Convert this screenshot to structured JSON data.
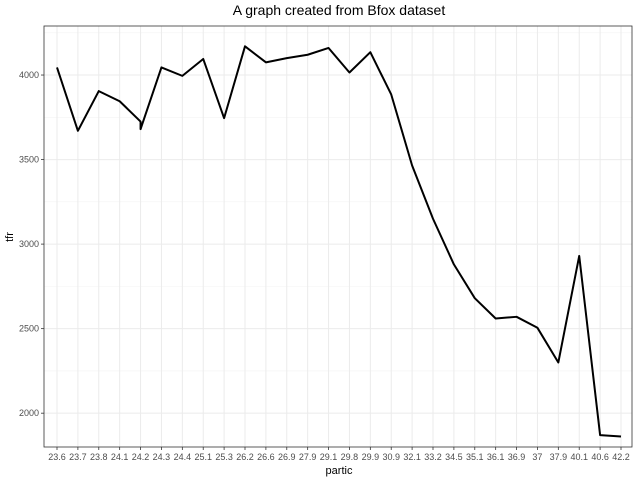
{
  "chart_data": {
    "type": "line",
    "title": "A graph created from Bfox dataset",
    "xlabel": "partic",
    "ylabel": "tfr",
    "categories": [
      "23.6",
      "23.7",
      "23.8",
      "24.1",
      "24.2",
      "24.3",
      "24.4",
      "25.1",
      "25.3",
      "26.2",
      "26.6",
      "26.9",
      "27.9",
      "29.1",
      "29.8",
      "29.9",
      "30.9",
      "32.1",
      "33.2",
      "34.5",
      "35.1",
      "36.1",
      "36.9",
      "37",
      "37.9",
      "40.1",
      "40.6",
      "42.2"
    ],
    "points": [
      {
        "x": "23.6",
        "y": 4045
      },
      {
        "x": "23.7",
        "y": 3670
      },
      {
        "x": "23.8",
        "y": 3905
      },
      {
        "x": "24.1",
        "y": 3845
      },
      {
        "x": "24.2",
        "y": 3725
      },
      {
        "x": "24.2",
        "y": 3680
      },
      {
        "x": "24.3",
        "y": 4045
      },
      {
        "x": "24.4",
        "y": 3995
      },
      {
        "x": "25.1",
        "y": 4095
      },
      {
        "x": "25.3",
        "y": 3745
      },
      {
        "x": "26.2",
        "y": 4170
      },
      {
        "x": "26.6",
        "y": 4075
      },
      {
        "x": "26.9",
        "y": 4100
      },
      {
        "x": "27.9",
        "y": 4120
      },
      {
        "x": "29.1",
        "y": 4160
      },
      {
        "x": "29.8",
        "y": 4015
      },
      {
        "x": "29.9",
        "y": 4135
      },
      {
        "x": "30.9",
        "y": 3885
      },
      {
        "x": "32.1",
        "y": 3465
      },
      {
        "x": "33.2",
        "y": 3150
      },
      {
        "x": "34.5",
        "y": 2880
      },
      {
        "x": "35.1",
        "y": 2680
      },
      {
        "x": "36.1",
        "y": 2560
      },
      {
        "x": "36.9",
        "y": 2570
      },
      {
        "x": "37",
        "y": 2505
      },
      {
        "x": "37.9",
        "y": 2300
      },
      {
        "x": "40.1",
        "y": 2930
      },
      {
        "x": "40.6",
        "y": 1870
      },
      {
        "x": "42.2",
        "y": 1862
      }
    ],
    "y_ticks": [
      2000,
      2500,
      3000,
      3500,
      4000
    ],
    "ylim": [
      1800,
      4290
    ],
    "grid": true,
    "line_color": "#000000"
  }
}
